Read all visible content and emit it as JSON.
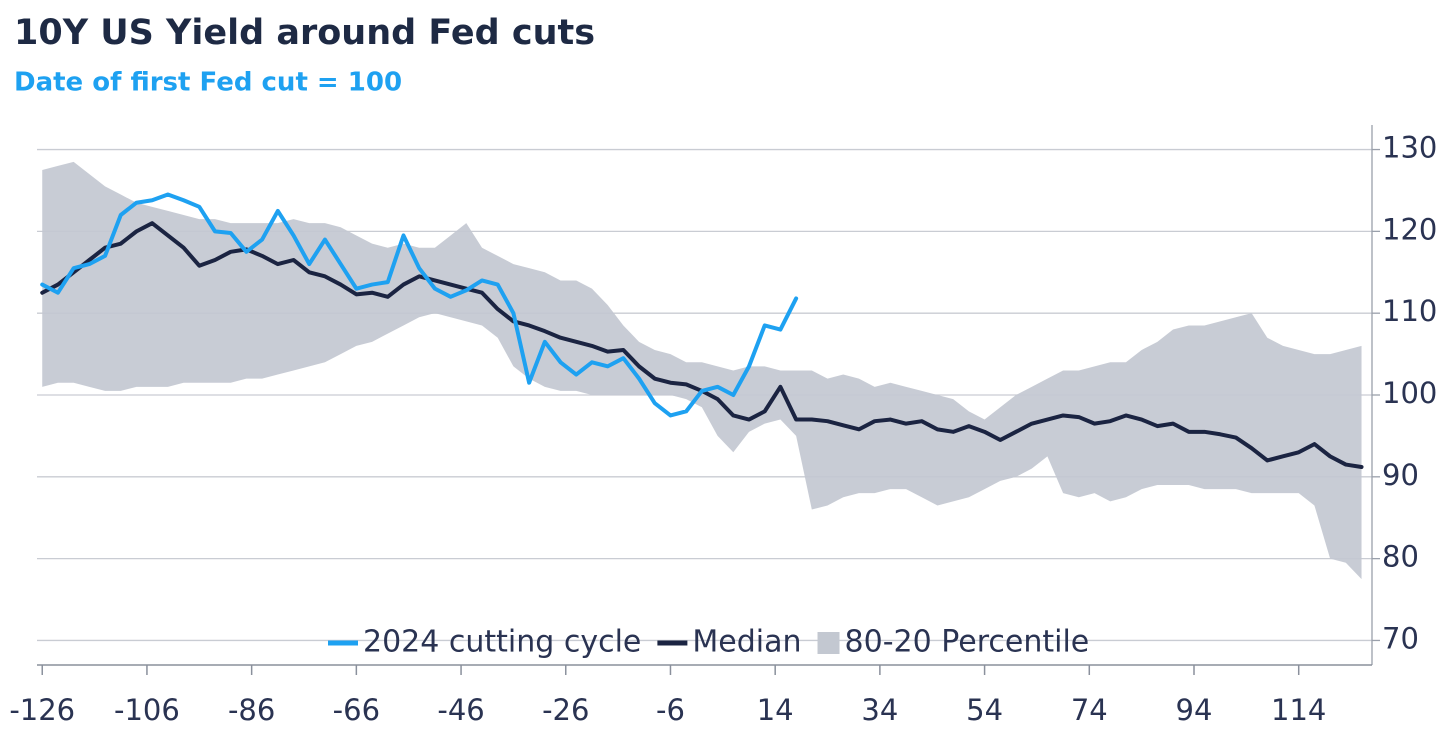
{
  "chart_data": {
    "type": "line",
    "title": "10Y US Yield around Fed cuts",
    "subtitle": "Date of first Fed cut = 100",
    "x": [
      -126,
      -123,
      -120,
      -117,
      -114,
      -111,
      -108,
      -105,
      -102,
      -99,
      -96,
      -93,
      -90,
      -87,
      -84,
      -81,
      -78,
      -75,
      -72,
      -69,
      -66,
      -63,
      -60,
      -57,
      -54,
      -51,
      -48,
      -45,
      -42,
      -39,
      -36,
      -33,
      -30,
      -27,
      -24,
      -21,
      -18,
      -15,
      -12,
      -9,
      -6,
      -3,
      0,
      3,
      6,
      9,
      12,
      15,
      18,
      21,
      24,
      27,
      30,
      33,
      36,
      39,
      42,
      45,
      48,
      51,
      54,
      57,
      60,
      63,
      66,
      69,
      72,
      75,
      78,
      81,
      84,
      87,
      90,
      93,
      96,
      99,
      102,
      105,
      108,
      111,
      114,
      117,
      120,
      123,
      126
    ],
    "xlim": [
      -127,
      128
    ],
    "xticks": [
      -126,
      -106,
      -86,
      -66,
      -46,
      -26,
      -6,
      14,
      34,
      54,
      74,
      94,
      114
    ],
    "ylim": [
      67,
      133
    ],
    "yticks": [
      70,
      80,
      90,
      100,
      110,
      120,
      130
    ],
    "y_axis_side": "right",
    "grid": true,
    "legend": "bottom",
    "band": {
      "name": "80-20 Percentile",
      "color": "#c3c8d1",
      "upper": [
        127.5,
        128,
        128.5,
        127,
        125.5,
        124.5,
        123.5,
        123,
        122.5,
        122,
        121.5,
        121.5,
        121,
        121,
        121,
        121,
        121.5,
        121,
        121,
        120.5,
        119.5,
        118.5,
        118,
        118.5,
        118,
        118,
        119.5,
        121,
        118,
        117,
        116,
        115.5,
        115,
        114,
        114,
        113,
        111,
        108.5,
        106.5,
        105.5,
        105,
        104,
        104,
        103.5,
        103,
        103.5,
        103.5,
        103,
        103,
        103,
        102,
        102.5,
        102,
        101,
        101.5,
        101,
        100.5,
        100,
        99.5,
        98,
        97,
        98.5,
        100,
        101,
        102,
        103,
        103,
        103.5,
        104,
        104,
        105.5,
        106.5,
        108,
        108.5,
        108.5,
        109,
        109.5,
        110,
        107,
        106,
        105.5,
        105,
        105,
        105.5,
        106
      ],
      "lower": [
        101,
        101.5,
        101.5,
        101,
        100.5,
        100.5,
        101,
        101,
        101,
        101.5,
        101.5,
        101.5,
        101.5,
        102,
        102,
        102.5,
        103,
        103.5,
        104,
        105,
        106,
        106.5,
        107.5,
        108.5,
        109.5,
        110,
        109.5,
        109,
        108.5,
        107,
        103.5,
        102,
        101,
        100.5,
        100.5,
        100,
        100,
        100,
        100,
        100,
        100,
        99.5,
        98.5,
        95,
        93,
        95.5,
        96.5,
        97,
        95,
        86,
        86.5,
        87.5,
        88,
        88,
        88.5,
        88.5,
        87.5,
        86.5,
        87,
        87.5,
        88.5,
        89.5,
        90,
        91,
        92.5,
        88,
        87.5,
        88,
        87,
        87.5,
        88.5,
        89,
        89,
        89,
        88.5,
        88.5,
        88.5,
        88,
        88,
        88,
        88,
        86.5,
        80,
        79.5,
        77.5
      ]
    },
    "series": [
      {
        "name": "2024 cutting cycle",
        "color": "#1ea1f1",
        "values": [
          113.5,
          112.5,
          115.5,
          116,
          117,
          122,
          123.5,
          123.8,
          124.5,
          123.8,
          123,
          120,
          119.8,
          117.5,
          119,
          122.5,
          119.5,
          116,
          119,
          116,
          113,
          113.5,
          113.8,
          119.5,
          115.5,
          113,
          112,
          112.8,
          114,
          113.5,
          110,
          101.5,
          106.5,
          104,
          102.5,
          104,
          103.5,
          104.5,
          102,
          99,
          97.5,
          98,
          100.5,
          101,
          100,
          103.5,
          108.5,
          108,
          111.8,
          null,
          null,
          null,
          null,
          null,
          null,
          null,
          null,
          null,
          null,
          null,
          null,
          null,
          null,
          null,
          null,
          null,
          null,
          null,
          null,
          null,
          null,
          null,
          null,
          null,
          null,
          null,
          null,
          null,
          null,
          null,
          null,
          null,
          null,
          null,
          null
        ]
      },
      {
        "name": "Median",
        "color": "#1b2442",
        "values": [
          112.5,
          113.5,
          115,
          116.5,
          118,
          118.5,
          120,
          121,
          119.5,
          118,
          115.8,
          116.5,
          117.5,
          117.8,
          117,
          116,
          116.5,
          115,
          114.5,
          113.5,
          112.3,
          112.5,
          112,
          113.5,
          114.5,
          114,
          113.5,
          113,
          112.5,
          110.5,
          109,
          108.5,
          107.8,
          107,
          106.5,
          106,
          105.3,
          105.5,
          103.5,
          102,
          101.5,
          101.3,
          100.5,
          99.5,
          97.5,
          97,
          98,
          101,
          97,
          97,
          96.8,
          96.3,
          95.8,
          96.8,
          97,
          96.5,
          96.8,
          95.8,
          95.5,
          96.2,
          95.5,
          94.5,
          95.5,
          96.5,
          97,
          97.5,
          97.3,
          96.5,
          96.8,
          97.5,
          97,
          96.2,
          96.5,
          95.5,
          95.5,
          95.2,
          94.8,
          93.5,
          92,
          92.5,
          93,
          94,
          92.5,
          91.5,
          91.2
        ]
      }
    ]
  }
}
